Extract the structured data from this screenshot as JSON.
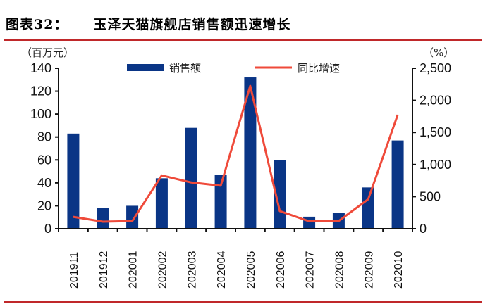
{
  "header": {
    "figure_number": "图表32：",
    "title": "玉泽天猫旗舰店销售额迅速增长"
  },
  "colors": {
    "bar": "#0a3586",
    "line": "#ef4a3a",
    "rule": "#c0282a",
    "axis": "#111111"
  },
  "chart_data": {
    "type": "bar+line",
    "title": "玉泽天猫旗舰店销售额迅速增长",
    "categories": [
      "201911",
      "201912",
      "202001",
      "202002",
      "202003",
      "202004",
      "202005",
      "202006",
      "202007",
      "202008",
      "202009",
      "202010"
    ],
    "series": [
      {
        "name": "销售额",
        "type": "bar",
        "axis": "left",
        "values": [
          83,
          18,
          20,
          44,
          88,
          47,
          132,
          60,
          10.5,
          14,
          36,
          77
        ]
      },
      {
        "name": "同比增速",
        "type": "line",
        "axis": "right",
        "values": [
          185,
          110,
          120,
          830,
          720,
          670,
          2225,
          275,
          115,
          120,
          460,
          1775
        ]
      }
    ],
    "left_axis": {
      "label": "（百万元）",
      "ylim": [
        0,
        140
      ],
      "ticks": [
        0,
        20,
        40,
        60,
        80,
        100,
        120,
        140
      ],
      "tick_labels": [
        "0",
        "20",
        "40",
        "60",
        "80",
        "100",
        "120",
        "140"
      ]
    },
    "right_axis": {
      "label": "（%）",
      "ylim": [
        0,
        2500
      ],
      "ticks": [
        0,
        500,
        1000,
        1500,
        2000,
        2500
      ],
      "tick_labels": [
        "0",
        "500",
        "1,000",
        "1,500",
        "2,000",
        "2,500"
      ]
    },
    "xlabel": "",
    "legend_position": "top",
    "grid": false
  },
  "legend": {
    "bar_label": "销售额",
    "line_label": "同比增速"
  }
}
